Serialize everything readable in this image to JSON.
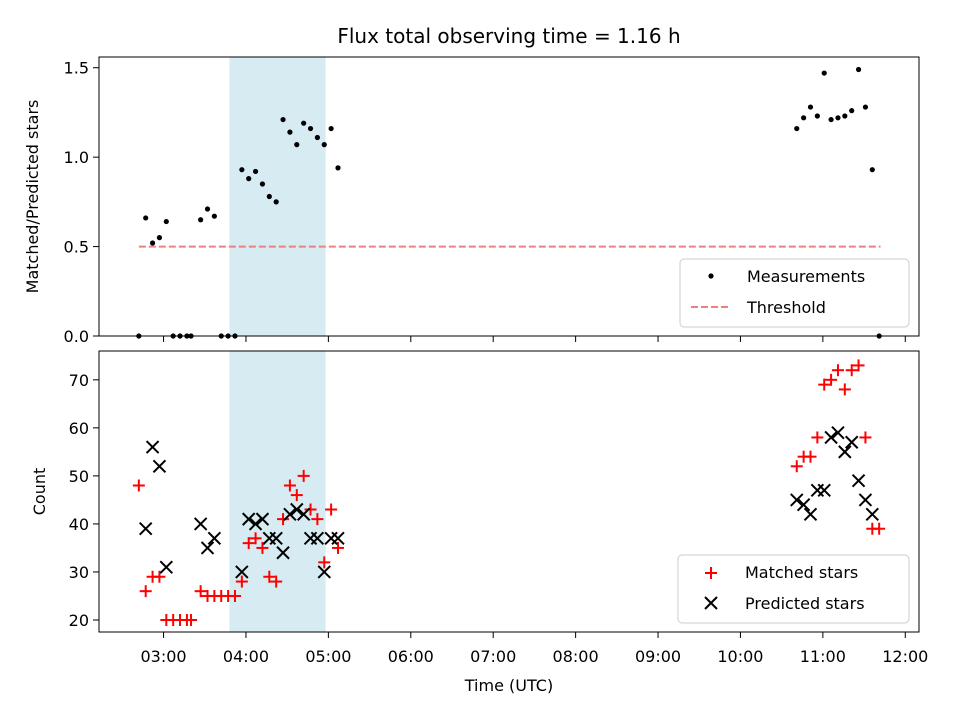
{
  "title": "Flux total observing time = 1.16 h",
  "colors": {
    "measurement": "#000000",
    "threshold": "#f08080",
    "matched": "#ff0000",
    "predicted": "#000000",
    "band": "#add8e6"
  },
  "chart_data": [
    {
      "type": "scatter",
      "ylabel": "Matched/Predicted stars",
      "xlim": [
        "02:13",
        "12:10"
      ],
      "ylim": [
        0,
        1.56
      ],
      "y_ticks": [
        "0.0",
        "0.5",
        "1.0",
        "1.5"
      ],
      "x_ticks": [
        "03:00",
        "04:00",
        "05:00",
        "06:00",
        "07:00",
        "08:00",
        "09:00",
        "10:00",
        "11:00",
        "12:00"
      ],
      "highlight_band": [
        "03:48",
        "04:58"
      ],
      "legend_position": "lower right",
      "legend": {
        "measurements": "Measurements",
        "threshold": "Threshold"
      },
      "threshold": {
        "x": [
          "02:42",
          "11:42"
        ],
        "y": 0.5
      },
      "measurements": [
        {
          "x": "02:42",
          "y": 0.0
        },
        {
          "x": "02:47",
          "y": 0.66
        },
        {
          "x": "02:52",
          "y": 0.52
        },
        {
          "x": "02:57",
          "y": 0.55
        },
        {
          "x": "03:02",
          "y": 0.64
        },
        {
          "x": "03:07",
          "y": 0.0
        },
        {
          "x": "03:12",
          "y": 0.0
        },
        {
          "x": "03:17",
          "y": 0.0
        },
        {
          "x": "03:20",
          "y": 0.0
        },
        {
          "x": "03:27",
          "y": 0.65
        },
        {
          "x": "03:32",
          "y": 0.71
        },
        {
          "x": "03:37",
          "y": 0.67
        },
        {
          "x": "03:42",
          "y": 0.0
        },
        {
          "x": "03:47",
          "y": 0.0
        },
        {
          "x": "03:52",
          "y": 0.0
        },
        {
          "x": "03:57",
          "y": 0.93
        },
        {
          "x": "04:02",
          "y": 0.88
        },
        {
          "x": "04:07",
          "y": 0.92
        },
        {
          "x": "04:12",
          "y": 0.85
        },
        {
          "x": "04:17",
          "y": 0.78
        },
        {
          "x": "04:22",
          "y": 0.75
        },
        {
          "x": "04:27",
          "y": 1.21
        },
        {
          "x": "04:32",
          "y": 1.14
        },
        {
          "x": "04:37",
          "y": 1.07
        },
        {
          "x": "04:42",
          "y": 1.19
        },
        {
          "x": "04:47",
          "y": 1.16
        },
        {
          "x": "04:52",
          "y": 1.11
        },
        {
          "x": "04:57",
          "y": 1.07
        },
        {
          "x": "05:02",
          "y": 1.16
        },
        {
          "x": "05:07",
          "y": 0.94
        },
        {
          "x": "10:41",
          "y": 1.16
        },
        {
          "x": "10:46",
          "y": 1.22
        },
        {
          "x": "10:51",
          "y": 1.28
        },
        {
          "x": "10:56",
          "y": 1.23
        },
        {
          "x": "11:01",
          "y": 1.47
        },
        {
          "x": "11:06",
          "y": 1.21
        },
        {
          "x": "11:11",
          "y": 1.22
        },
        {
          "x": "11:16",
          "y": 1.23
        },
        {
          "x": "11:21",
          "y": 1.26
        },
        {
          "x": "11:26",
          "y": 1.49
        },
        {
          "x": "11:31",
          "y": 1.28
        },
        {
          "x": "11:36",
          "y": 0.93
        },
        {
          "x": "11:41",
          "y": 0.0
        }
      ]
    },
    {
      "type": "scatter",
      "xlabel": "Time (UTC)",
      "ylabel": "Count",
      "xlim": [
        "02:13",
        "12:10"
      ],
      "ylim": [
        17.5,
        76
      ],
      "y_ticks": [
        "20",
        "30",
        "40",
        "50",
        "60",
        "70"
      ],
      "x_ticks": [
        "03:00",
        "04:00",
        "05:00",
        "06:00",
        "07:00",
        "08:00",
        "09:00",
        "10:00",
        "11:00",
        "12:00"
      ],
      "highlight_band": [
        "03:48",
        "04:58"
      ],
      "legend_position": "lower right",
      "series": [
        {
          "name": "Matched stars",
          "marker": "plus",
          "points": [
            {
              "x": "02:42",
              "y": 48
            },
            {
              "x": "02:47",
              "y": 26
            },
            {
              "x": "02:52",
              "y": 29
            },
            {
              "x": "02:57",
              "y": 29
            },
            {
              "x": "03:02",
              "y": 20
            },
            {
              "x": "03:07",
              "y": 20
            },
            {
              "x": "03:12",
              "y": 20
            },
            {
              "x": "03:17",
              "y": 20
            },
            {
              "x": "03:20",
              "y": 20
            },
            {
              "x": "03:27",
              "y": 26
            },
            {
              "x": "03:32",
              "y": 25
            },
            {
              "x": "03:37",
              "y": 25
            },
            {
              "x": "03:42",
              "y": 25
            },
            {
              "x": "03:47",
              "y": 25
            },
            {
              "x": "03:52",
              "y": 25
            },
            {
              "x": "03:57",
              "y": 28
            },
            {
              "x": "04:02",
              "y": 36
            },
            {
              "x": "04:07",
              "y": 37
            },
            {
              "x": "04:12",
              "y": 35
            },
            {
              "x": "04:17",
              "y": 29
            },
            {
              "x": "04:22",
              "y": 28
            },
            {
              "x": "04:27",
              "y": 41
            },
            {
              "x": "04:32",
              "y": 48
            },
            {
              "x": "04:37",
              "y": 46
            },
            {
              "x": "04:42",
              "y": 50
            },
            {
              "x": "04:47",
              "y": 43
            },
            {
              "x": "04:52",
              "y": 41
            },
            {
              "x": "04:57",
              "y": 32
            },
            {
              "x": "05:02",
              "y": 43
            },
            {
              "x": "05:07",
              "y": 35
            },
            {
              "x": "10:41",
              "y": 52
            },
            {
              "x": "10:46",
              "y": 54
            },
            {
              "x": "10:51",
              "y": 54
            },
            {
              "x": "10:56",
              "y": 58
            },
            {
              "x": "11:01",
              "y": 69
            },
            {
              "x": "11:06",
              "y": 70
            },
            {
              "x": "11:11",
              "y": 72
            },
            {
              "x": "11:16",
              "y": 68
            },
            {
              "x": "11:21",
              "y": 72
            },
            {
              "x": "11:26",
              "y": 73
            },
            {
              "x": "11:31",
              "y": 58
            },
            {
              "x": "11:36",
              "y": 39
            },
            {
              "x": "11:41",
              "y": 39
            }
          ]
        },
        {
          "name": "Predicted stars",
          "marker": "x",
          "points": [
            {
              "x": "02:47",
              "y": 39
            },
            {
              "x": "02:52",
              "y": 56
            },
            {
              "x": "02:57",
              "y": 52
            },
            {
              "x": "03:02",
              "y": 31
            },
            {
              "x": "03:27",
              "y": 40
            },
            {
              "x": "03:32",
              "y": 35
            },
            {
              "x": "03:37",
              "y": 37
            },
            {
              "x": "03:57",
              "y": 30
            },
            {
              "x": "04:02",
              "y": 41
            },
            {
              "x": "04:07",
              "y": 40
            },
            {
              "x": "04:12",
              "y": 41
            },
            {
              "x": "04:17",
              "y": 37
            },
            {
              "x": "04:22",
              "y": 37
            },
            {
              "x": "04:27",
              "y": 34
            },
            {
              "x": "04:32",
              "y": 42
            },
            {
              "x": "04:37",
              "y": 43
            },
            {
              "x": "04:42",
              "y": 42
            },
            {
              "x": "04:47",
              "y": 37
            },
            {
              "x": "04:52",
              "y": 37
            },
            {
              "x": "04:57",
              "y": 30
            },
            {
              "x": "05:02",
              "y": 37
            },
            {
              "x": "05:07",
              "y": 37
            },
            {
              "x": "10:41",
              "y": 45
            },
            {
              "x": "10:46",
              "y": 44
            },
            {
              "x": "10:51",
              "y": 42
            },
            {
              "x": "10:56",
              "y": 47
            },
            {
              "x": "11:01",
              "y": 47
            },
            {
              "x": "11:06",
              "y": 58
            },
            {
              "x": "11:11",
              "y": 59
            },
            {
              "x": "11:16",
              "y": 55
            },
            {
              "x": "11:21",
              "y": 57
            },
            {
              "x": "11:26",
              "y": 49
            },
            {
              "x": "11:31",
              "y": 45
            },
            {
              "x": "11:36",
              "y": 42
            }
          ]
        }
      ]
    }
  ]
}
